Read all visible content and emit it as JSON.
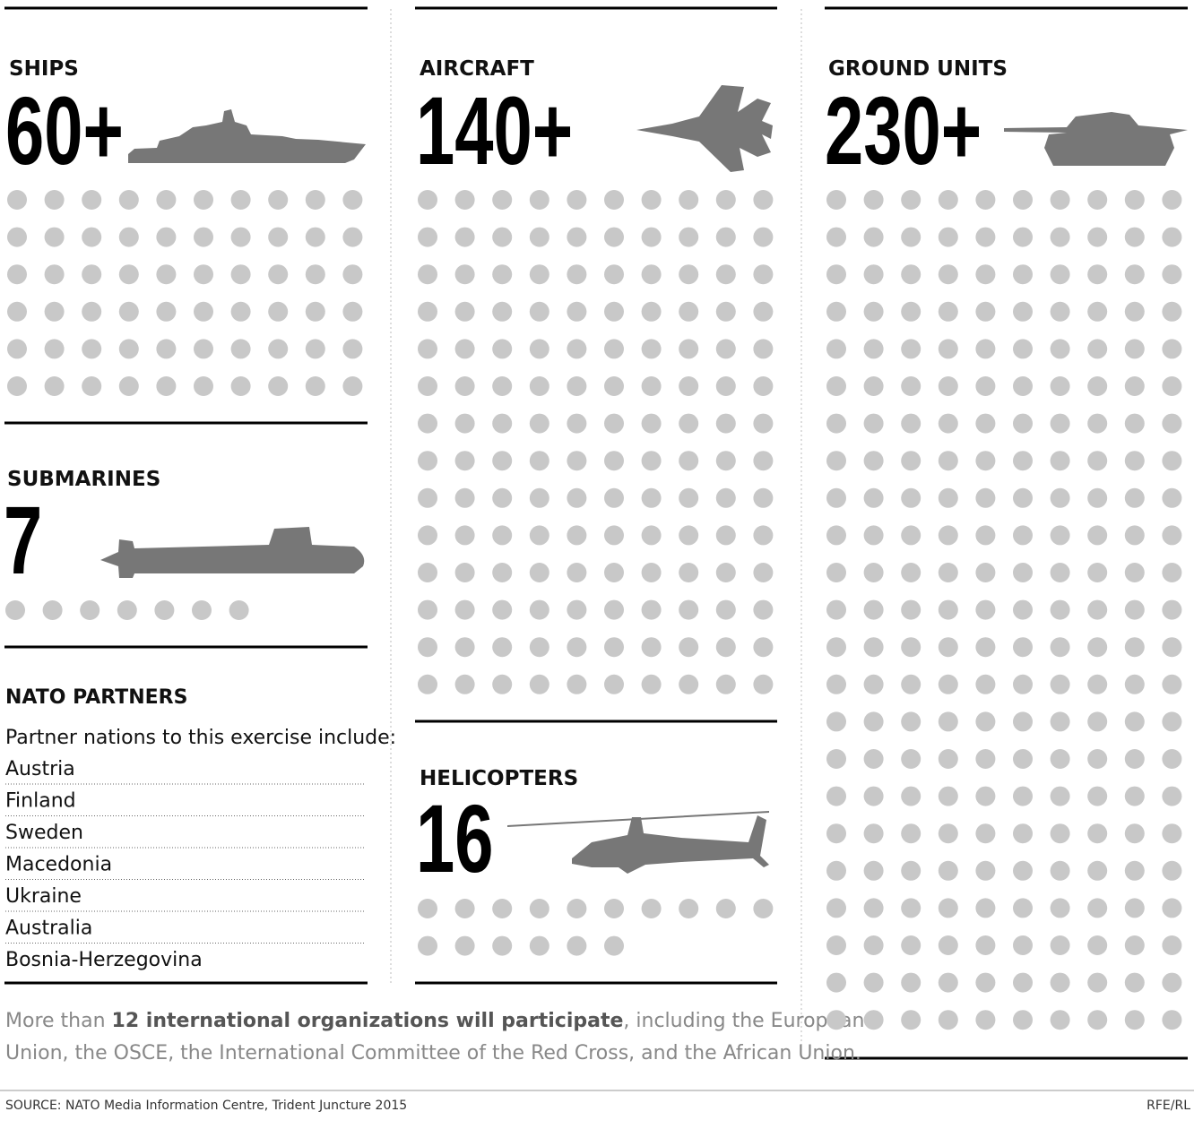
{
  "panels": [
    {
      "title": "SHIPS",
      "value": 60,
      "value_label": "60+"
    },
    {
      "title": "SUBMARINES",
      "value": 7,
      "value_label": "7"
    },
    {
      "title": "AIRCRAFT",
      "value": 140,
      "value_label": "140+"
    },
    {
      "title": "HELICOPTERS",
      "value": 16,
      "value_label": "16"
    },
    {
      "title": "GROUND UNITS",
      "value": 230,
      "value_label": "230+"
    }
  ],
  "partners": {
    "title": "NATO PARTNERS",
    "subtitle": "Partner nations to this exercise include:",
    "countries": [
      "Austria",
      "Finland",
      "Sweden",
      "Macedonia",
      "Ukraine",
      "Australia",
      "Bosnia-Herzegovina"
    ]
  },
  "note": {
    "parts": [
      "More than ",
      "12 international organizations will participate",
      ", including the European",
      "Union, the OSCE, the International Committee of the Red Cross, and the African Union."
    ]
  },
  "source": "SOURCE: NATO Media Information Centre, Trident Juncture 2015",
  "credit": "RFE/RL"
}
